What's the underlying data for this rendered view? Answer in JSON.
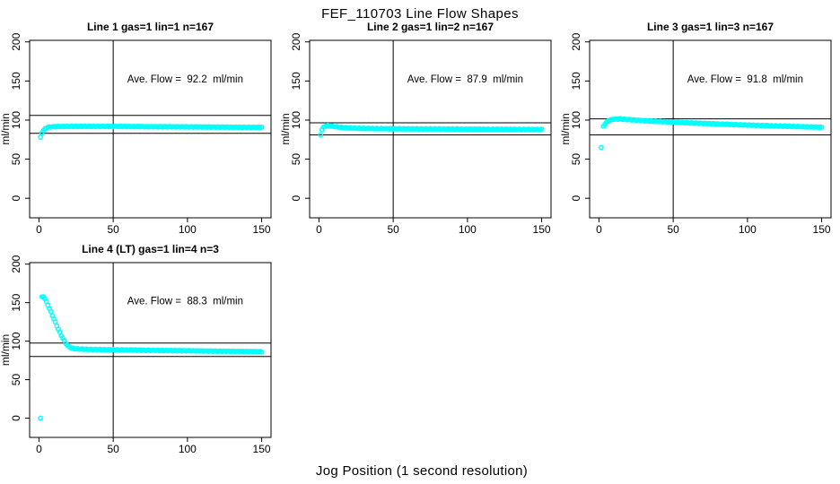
{
  "figure": {
    "title": "FEF_110703  Line Flow Shapes",
    "xlabel": "Jog Position (1 second resolution)",
    "colors": {
      "data_points": "#00ffff",
      "axis": "#000000",
      "background": "#ffffff",
      "text": "#000000"
    }
  },
  "chart_data": [
    {
      "type": "scatter",
      "title": "Line 1 gas=1 lin=1 n=167",
      "annotation": "Ave. Flow =  92.2  ml/min",
      "ave_flow_ml_min": 92.2,
      "ylabel": "ml/min",
      "xticks": [
        0,
        50,
        100,
        150
      ],
      "yticks": [
        0,
        50,
        100,
        150,
        200
      ],
      "xlim": [
        -6.3,
        156.3
      ],
      "ylim": [
        -25,
        202
      ],
      "grid": false,
      "vline_x": 50,
      "hlines_y": [
        106,
        83
      ],
      "outlier_points": [
        [
          1,
          78
        ]
      ],
      "series_x_step": 1,
      "series_keypoints": [
        [
          2,
          84
        ],
        [
          3,
          86.5
        ],
        [
          4,
          88.5
        ],
        [
          5,
          90
        ],
        [
          6,
          90.8
        ],
        [
          8,
          91.4
        ],
        [
          12,
          91.7
        ],
        [
          20,
          91.9
        ],
        [
          50,
          91.9
        ],
        [
          100,
          91.3
        ],
        [
          130,
          90.9
        ],
        [
          150,
          90.6
        ]
      ]
    },
    {
      "type": "scatter",
      "title": "Line 2 gas=1 lin=2 n=167",
      "annotation": "Ave. Flow =  87.9  ml/min",
      "ave_flow_ml_min": 87.9,
      "ylabel": "ml/min",
      "xticks": [
        0,
        50,
        100,
        150
      ],
      "yticks": [
        0,
        50,
        100,
        150,
        200
      ],
      "xlim": [
        -6.3,
        156.3
      ],
      "ylim": [
        -25,
        202
      ],
      "grid": false,
      "vline_x": 50,
      "hlines_y": [
        96.5,
        81
      ],
      "outlier_points": [
        [
          1,
          81
        ]
      ],
      "series_x_step": 1,
      "series_keypoints": [
        [
          2,
          88
        ],
        [
          3,
          90.5
        ],
        [
          4,
          92
        ],
        [
          5,
          93
        ],
        [
          7,
          92.8
        ],
        [
          10,
          91.8
        ],
        [
          15,
          90.6
        ],
        [
          20,
          89.9
        ],
        [
          30,
          89.2
        ],
        [
          50,
          88.8
        ],
        [
          100,
          88.3
        ],
        [
          150,
          87.9
        ]
      ]
    },
    {
      "type": "scatter",
      "title": "Line 3 gas=1 lin=3 n=167",
      "annotation": "Ave. Flow =  91.8  ml/min",
      "ave_flow_ml_min": 91.8,
      "ylabel": "ml/min",
      "xticks": [
        0,
        50,
        100,
        150
      ],
      "yticks": [
        0,
        50,
        100,
        150,
        200
      ],
      "xlim": [
        -6.3,
        156.3
      ],
      "ylim": [
        -25,
        202
      ],
      "grid": false,
      "vline_x": 50,
      "hlines_y": [
        101.5,
        81
      ],
      "outlier_points": [
        [
          1.5,
          65
        ]
      ],
      "series_x_step": 1,
      "series_keypoints": [
        [
          3,
          92
        ],
        [
          4,
          95
        ],
        [
          6,
          98.5
        ],
        [
          8,
          100.3
        ],
        [
          10,
          101.2
        ],
        [
          14,
          101.5
        ],
        [
          20,
          100.6
        ],
        [
          30,
          99.2
        ],
        [
          50,
          97.2
        ],
        [
          80,
          95
        ],
        [
          100,
          93.6
        ],
        [
          120,
          92.4
        ],
        [
          150,
          90.8
        ]
      ]
    },
    {
      "type": "scatter",
      "title": "Line 4 (LT) gas=1 lin=4 n=3",
      "annotation": "Ave. Flow =  88.3  ml/min",
      "ave_flow_ml_min": 88.3,
      "ylabel": "ml/min",
      "xticks": [
        0,
        50,
        100,
        150
      ],
      "yticks": [
        0,
        50,
        100,
        150,
        200
      ],
      "xlim": [
        -6.3,
        156.3
      ],
      "ylim": [
        -25,
        202
      ],
      "grid": false,
      "vline_x": 50,
      "hlines_y": [
        97.5,
        80
      ],
      "outlier_points": [
        [
          1,
          0
        ]
      ],
      "series_x_step": 1,
      "series_keypoints": [
        [
          2,
          157
        ],
        [
          3,
          158
        ],
        [
          4,
          155
        ],
        [
          5,
          151
        ],
        [
          6,
          147
        ],
        [
          7,
          142.5
        ],
        [
          8,
          138
        ],
        [
          9,
          133.5
        ],
        [
          10,
          129
        ],
        [
          11,
          124.5
        ],
        [
          12,
          120
        ],
        [
          13,
          115.5
        ],
        [
          14,
          111.5
        ],
        [
          15,
          107.5
        ],
        [
          16,
          104
        ],
        [
          17,
          100.5
        ],
        [
          18,
          97.5
        ],
        [
          19,
          95
        ],
        [
          20,
          93
        ],
        [
          22,
          91
        ],
        [
          24,
          90.2
        ],
        [
          28,
          89.6
        ],
        [
          40,
          89
        ],
        [
          60,
          88.5
        ],
        [
          80,
          88
        ],
        [
          100,
          87.5
        ],
        [
          120,
          87
        ],
        [
          150,
          86.3
        ]
      ]
    }
  ]
}
